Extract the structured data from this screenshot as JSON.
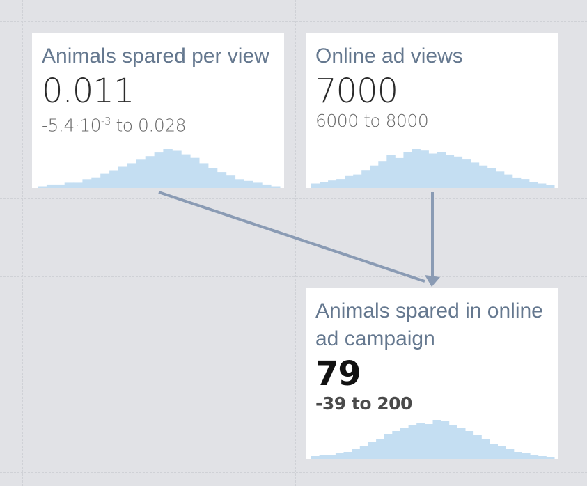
{
  "nodes": [
    {
      "id": "animals-spared-per-view",
      "title": "Animals spared per view",
      "value": "0.011",
      "range_low": "-5.4·10",
      "range_exp": "-3",
      "range_high": " to 0.028"
    },
    {
      "id": "online-ad-views",
      "title": "Online ad views",
      "value": "7000",
      "range": "6000 to 8000"
    },
    {
      "id": "animals-spared-campaign",
      "title": "Animals spared in online ad campaign",
      "value": "79",
      "range": "-39 to 200"
    }
  ],
  "colors": {
    "background": "#e1e2e6",
    "card": "#ffffff",
    "title": "#65788f",
    "histogram": "#c4def2",
    "arrow": "#8a9bb4"
  },
  "histograms": [
    [
      1,
      2,
      2,
      3,
      3,
      5,
      6,
      8,
      10,
      12,
      14,
      16,
      18,
      20,
      22,
      21,
      19,
      17,
      14,
      11,
      9,
      7,
      5,
      4,
      3,
      2,
      1
    ],
    [
      3,
      4,
      5,
      6,
      8,
      9,
      12,
      15,
      18,
      22,
      20,
      24,
      26,
      25,
      23,
      24,
      22,
      21,
      19,
      17,
      15,
      13,
      11,
      9,
      7,
      6,
      4,
      3,
      2
    ],
    [
      2,
      3,
      3,
      4,
      5,
      7,
      9,
      12,
      14,
      18,
      20,
      22,
      24,
      26,
      25,
      28,
      27,
      24,
      22,
      20,
      17,
      14,
      11,
      9,
      7,
      5,
      4,
      3,
      2,
      1
    ]
  ]
}
